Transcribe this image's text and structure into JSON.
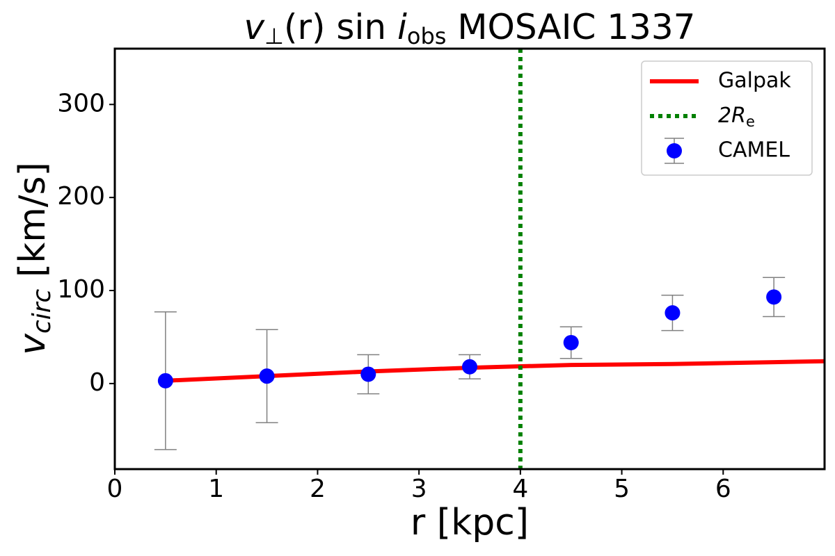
{
  "chart_data": {
    "type": "errorbar",
    "title_parts": [
      "v",
      "⊥",
      "(r) sin ",
      "i",
      "obs",
      " MOSAIC 1337"
    ],
    "x_label": "r [kpc]",
    "y_label_parts": [
      "v",
      "circ",
      " [km/s]"
    ],
    "xlim": [
      0,
      7
    ],
    "ylim": [
      -92,
      360
    ],
    "xticks": [
      0,
      1,
      2,
      3,
      4,
      5,
      6
    ],
    "yticks": [
      0,
      100,
      200,
      300
    ],
    "legend": "upper right",
    "series": [
      {
        "name": "Galpak",
        "kind": "line",
        "color": "#ff0000",
        "x": [
          0.5,
          1.5,
          2.5,
          3.5,
          4.5,
          5.5,
          6.5,
          7
        ],
        "values": [
          3,
          8,
          13,
          17,
          20,
          21,
          23,
          24
        ]
      },
      {
        "name_parts": [
          "2R",
          "e"
        ],
        "kind": "vline",
        "color": "#008000",
        "x": 4
      },
      {
        "name": "CAMEL",
        "kind": "errorbar",
        "color": "#0000ff",
        "error_color": "#808080",
        "x": [
          0.5,
          1.5,
          2.5,
          3.5,
          4.5,
          5.5,
          6.5
        ],
        "values": [
          3,
          8,
          10,
          18,
          44,
          76,
          93
        ],
        "errors": [
          74,
          50,
          21,
          13,
          17,
          19,
          21
        ]
      }
    ]
  }
}
